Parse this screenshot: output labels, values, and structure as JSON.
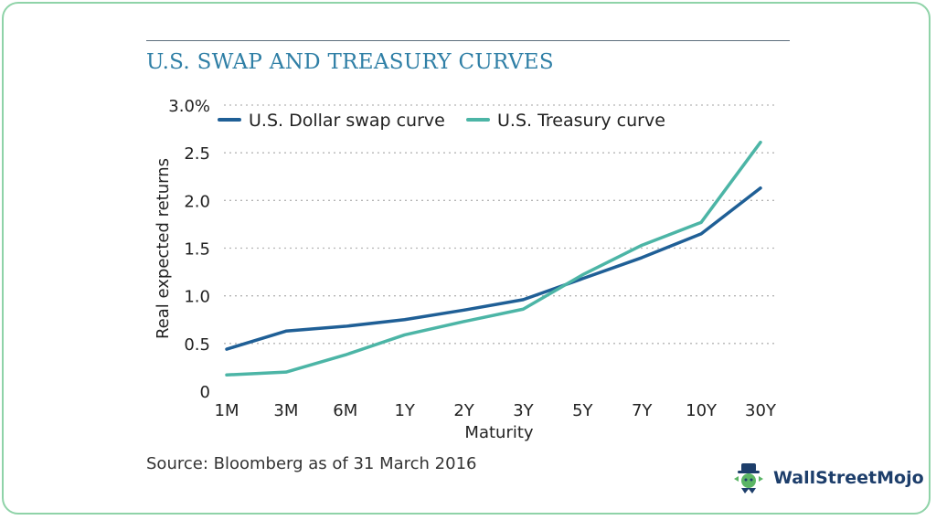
{
  "chart_data": {
    "type": "line",
    "title": "U.S. SWAP AND TREASURY CURVES",
    "xlabel": "Maturity",
    "ylabel": "Real expected returns",
    "categories": [
      "1M",
      "3M",
      "6M",
      "1Y",
      "2Y",
      "3Y",
      "5Y",
      "7Y",
      "10Y",
      "30Y"
    ],
    "ylim": [
      0,
      3.0
    ],
    "yticks": [
      0,
      0.5,
      1.0,
      1.5,
      2.0,
      2.5,
      3.0
    ],
    "ytick_labels": [
      "0",
      "0.5",
      "1.0",
      "1.5",
      "2.0",
      "2.5",
      "3.0%"
    ],
    "grid": "horizontal dotted",
    "legend": "top-left",
    "series": [
      {
        "name": "U.S. Dollar swap curve",
        "color": "#1f5f96",
        "values": [
          0.44,
          0.63,
          0.68,
          0.75,
          0.85,
          0.96,
          1.18,
          1.4,
          1.65,
          2.13
        ]
      },
      {
        "name": "U.S. Treasury curve",
        "color": "#4cb5a6",
        "values": [
          0.17,
          0.2,
          0.38,
          0.59,
          0.73,
          0.86,
          1.22,
          1.53,
          1.77,
          2.61
        ]
      }
    ]
  },
  "source": "Source: Bloomberg as of 31 March 2016",
  "brand": {
    "name": "WallStreetMojo",
    "icon": "wallstreetmojo-logo-icon"
  },
  "colors": {
    "title": "#2f7fa6",
    "frame_border": "#8fd3a8",
    "grid": "#b5b5b5"
  }
}
